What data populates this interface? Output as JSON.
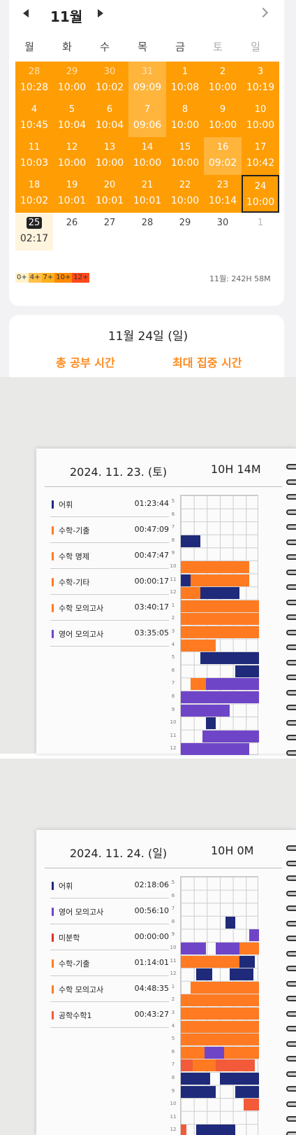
{
  "calendar": {
    "month_label": "11월",
    "weekdays": [
      "월",
      "화",
      "수",
      "목",
      "금",
      "토",
      "일"
    ],
    "weeks": [
      [
        {
          "d": "28",
          "t": "10:28",
          "k": "prev"
        },
        {
          "d": "29",
          "t": "10:00",
          "k": "prev"
        },
        {
          "d": "30",
          "t": "10:02",
          "k": "prev"
        },
        {
          "d": "31",
          "t": "09:09",
          "k": "prev lt"
        },
        {
          "d": "1",
          "t": "10:08",
          "k": ""
        },
        {
          "d": "2",
          "t": "10:00",
          "k": ""
        },
        {
          "d": "3",
          "t": "10:19",
          "k": ""
        }
      ],
      [
        {
          "d": "4",
          "t": "10:45",
          "k": ""
        },
        {
          "d": "5",
          "t": "10:04",
          "k": ""
        },
        {
          "d": "6",
          "t": "10:04",
          "k": ""
        },
        {
          "d": "7",
          "t": "09:06",
          "k": "lt"
        },
        {
          "d": "8",
          "t": "10:00",
          "k": ""
        },
        {
          "d": "9",
          "t": "10:00",
          "k": ""
        },
        {
          "d": "10",
          "t": "10:00",
          "k": ""
        }
      ],
      [
        {
          "d": "11",
          "t": "10:03",
          "k": ""
        },
        {
          "d": "12",
          "t": "10:00",
          "k": ""
        },
        {
          "d": "13",
          "t": "10:00",
          "k": ""
        },
        {
          "d": "14",
          "t": "10:00",
          "k": ""
        },
        {
          "d": "15",
          "t": "10:00",
          "k": ""
        },
        {
          "d": "16",
          "t": "09:02",
          "k": "lt"
        },
        {
          "d": "17",
          "t": "10:42",
          "k": ""
        }
      ],
      [
        {
          "d": "18",
          "t": "10:02",
          "k": ""
        },
        {
          "d": "19",
          "t": "10:01",
          "k": ""
        },
        {
          "d": "20",
          "t": "10:01",
          "k": ""
        },
        {
          "d": "21",
          "t": "10:01",
          "k": ""
        },
        {
          "d": "22",
          "t": "10:00",
          "k": ""
        },
        {
          "d": "23",
          "t": "10:14",
          "k": ""
        },
        {
          "d": "24",
          "t": "10:00",
          "k": "sel"
        }
      ],
      [
        {
          "d": "25",
          "t": "02:17",
          "k": "today"
        },
        {
          "d": "26",
          "t": "",
          "k": "empty"
        },
        {
          "d": "27",
          "t": "",
          "k": "empty"
        },
        {
          "d": "28",
          "t": "",
          "k": "empty"
        },
        {
          "d": "29",
          "t": "",
          "k": "empty"
        },
        {
          "d": "30",
          "t": "",
          "k": "empty"
        },
        {
          "d": "1",
          "t": "",
          "k": "empty next"
        }
      ]
    ],
    "legend": [
      {
        "label": "0+",
        "color": "#fff2cc"
      },
      {
        "label": "4+",
        "color": "#ffc04d"
      },
      {
        "label": "7+",
        "color": "#ffb020"
      },
      {
        "label": "10+",
        "color": "#ff8a00"
      },
      {
        "label": "12+",
        "color": "#ff4a1c"
      }
    ],
    "month_total": "11월: 242H 58M"
  },
  "detail": {
    "date_title": "11월 24일 (일)",
    "label_total": "총 공부 시간",
    "label_max": "최대 집중 시간"
  },
  "colors": {
    "orange": "#ff7a21",
    "navy": "#1f2a7a",
    "purple": "#6f45c8",
    "red": "#d8322a",
    "coral": "#f25a3a"
  },
  "pages": [
    {
      "date": "2024. 11. 23. (토)",
      "total": "10H 14M",
      "subjects": [
        {
          "name": "어휘",
          "time": "01:23:44",
          "color": "navy"
        },
        {
          "name": "수학-기출",
          "time": "00:47:09",
          "color": "orange"
        },
        {
          "name": "수학 명제",
          "time": "00:47:47",
          "color": "orange"
        },
        {
          "name": "수학-기타",
          "time": "00:00:17",
          "color": "orange"
        },
        {
          "name": "수학 모의고사",
          "time": "03:40:17",
          "color": "orange"
        },
        {
          "name": "영어 모의고사",
          "time": "03:35:05",
          "color": "purple"
        }
      ],
      "hours": [
        "5",
        "6",
        "7",
        "8",
        "9",
        "10",
        "11",
        "12",
        "1",
        "2",
        "3",
        "4",
        "5",
        "6",
        "7",
        "8",
        "9",
        "10",
        "11",
        "12"
      ]
    },
    {
      "date": "2024. 11. 24. (일)",
      "total": "10H 0M",
      "subjects": [
        {
          "name": "어휘",
          "time": "02:18:06",
          "color": "navy"
        },
        {
          "name": "영어 모의고사",
          "time": "00:56:10",
          "color": "purple"
        },
        {
          "name": "미분학",
          "time": "00:00:00",
          "color": "red"
        },
        {
          "name": "수학-기출",
          "time": "01:14:01",
          "color": "orange"
        },
        {
          "name": "수학 모의고사",
          "time": "04:48:35",
          "color": "orange"
        },
        {
          "name": "공학수학1",
          "time": "00:43:27",
          "color": "coral"
        }
      ],
      "hours": [
        "5",
        "6",
        "7",
        "8",
        "9",
        "10",
        "11",
        "12",
        "1",
        "2",
        "3",
        "4",
        "5",
        "6",
        "7",
        "8",
        "9",
        "10",
        "11",
        "12"
      ]
    }
  ]
}
